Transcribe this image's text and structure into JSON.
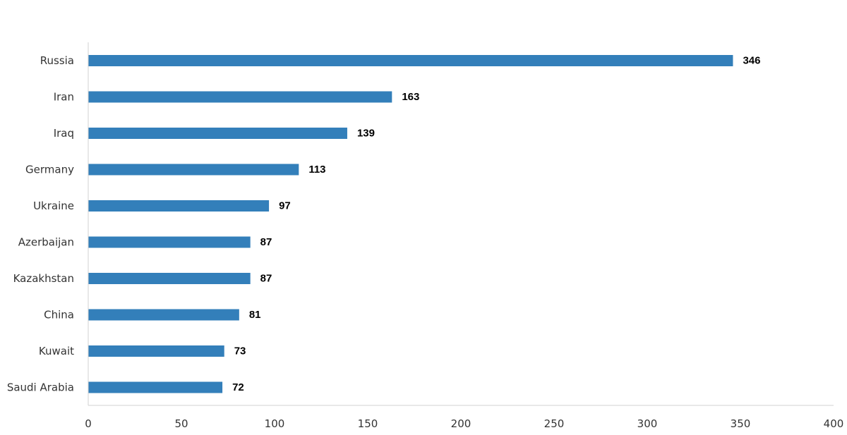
{
  "chart_data": {
    "type": "bar",
    "orientation": "horizontal",
    "categories": [
      "Russia",
      "Iran",
      "Iraq",
      "Germany",
      "Ukraine",
      "Azerbaijan",
      "Kazakhstan",
      "China",
      "Kuwait",
      "Saudi Arabia"
    ],
    "values": [
      346,
      163,
      139,
      113,
      97,
      87,
      87,
      81,
      73,
      72
    ],
    "value_labels": [
      "346",
      "163",
      "139",
      "113",
      "97",
      "87",
      "87",
      "81",
      "73",
      "72"
    ],
    "title": "",
    "xlabel": "",
    "ylabel": "",
    "xlim": [
      0,
      400
    ],
    "x_ticks": [
      0,
      50,
      100,
      150,
      200,
      250,
      300,
      350,
      400
    ],
    "x_tick_labels": [
      "0",
      "50",
      "100",
      "150",
      "200",
      "250",
      "300",
      "350",
      "400"
    ],
    "grid": false,
    "legend": "none",
    "bar_color": "#337fba"
  }
}
